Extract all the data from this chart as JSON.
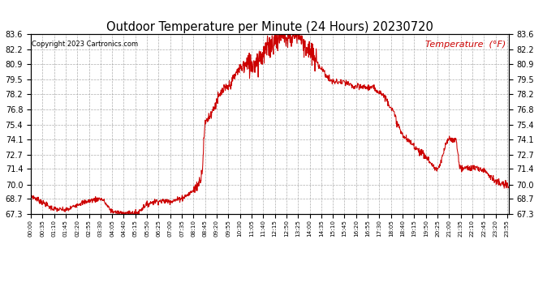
{
  "title": "Outdoor Temperature per Minute (24 Hours) 20230720",
  "copyright_text": "Copyright 2023 Cartronics.com",
  "legend_label": "Temperature  (°F)",
  "line_color": "#cc0000",
  "copyright_color": "#000000",
  "legend_color": "#cc0000",
  "background_color": "#ffffff",
  "grid_color": "#999999",
  "ylim": [
    67.3,
    83.6
  ],
  "yticks": [
    67.3,
    68.7,
    70.0,
    71.4,
    72.7,
    74.1,
    75.4,
    76.8,
    78.2,
    79.5,
    80.9,
    82.2,
    83.6
  ],
  "x_tick_labels": [
    "00:00",
    "00:35",
    "01:10",
    "01:45",
    "02:20",
    "02:55",
    "03:30",
    "04:05",
    "04:40",
    "05:15",
    "05:50",
    "06:25",
    "07:00",
    "07:35",
    "08:10",
    "08:45",
    "09:20",
    "09:55",
    "10:30",
    "11:05",
    "11:40",
    "12:15",
    "12:50",
    "13:25",
    "14:00",
    "14:35",
    "15:10",
    "15:45",
    "16:20",
    "16:55",
    "17:30",
    "18:05",
    "18:40",
    "19:15",
    "19:50",
    "20:25",
    "21:00",
    "21:35",
    "22:10",
    "22:45",
    "23:20",
    "23:55"
  ],
  "key_times_min": [
    0,
    35,
    70,
    105,
    140,
    175,
    210,
    245,
    280,
    315,
    350,
    385,
    420,
    455,
    490,
    515,
    525,
    545,
    560,
    580,
    595,
    630,
    665,
    700,
    720,
    735,
    755,
    770,
    790,
    805,
    820,
    840,
    875,
    910,
    945,
    980,
    1015,
    1050,
    1085,
    1120,
    1155,
    1190,
    1225,
    1260,
    1280,
    1295,
    1310,
    1330,
    1350,
    1365,
    1400,
    1420,
    1435
  ],
  "key_values": [
    69.0,
    68.4,
    67.8,
    67.7,
    68.2,
    68.5,
    68.7,
    67.6,
    67.4,
    67.4,
    68.2,
    68.5,
    68.5,
    68.8,
    69.5,
    71.0,
    75.4,
    76.5,
    77.5,
    78.5,
    78.8,
    80.5,
    80.9,
    81.8,
    82.5,
    83.0,
    83.6,
    83.2,
    83.4,
    83.6,
    82.8,
    82.0,
    80.5,
    79.3,
    79.2,
    78.8,
    78.8,
    78.4,
    77.0,
    74.5,
    73.5,
    72.5,
    71.4,
    74.1,
    74.0,
    71.4,
    71.5,
    71.5,
    71.4,
    71.3,
    70.3,
    70.0,
    69.9
  ]
}
